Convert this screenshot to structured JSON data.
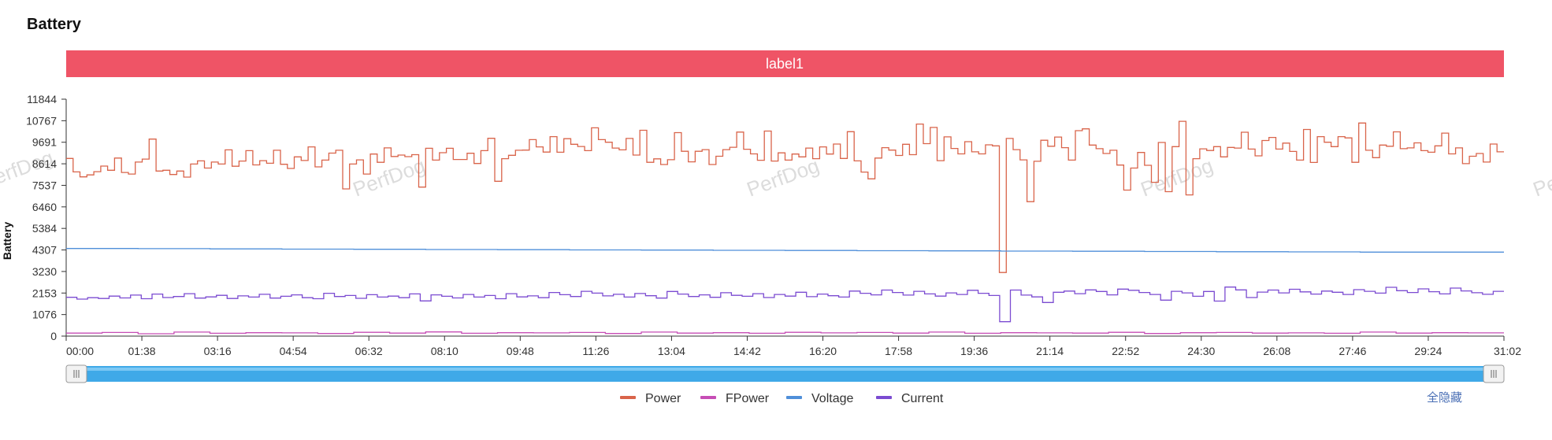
{
  "header": {
    "title": "Battery"
  },
  "chart_data": {
    "type": "line",
    "step": true,
    "ylabel": "Battery",
    "ylim": [
      0,
      11844
    ],
    "y_ticks": [
      0,
      1076,
      2153,
      3230,
      4307,
      5384,
      6460,
      7537,
      8614,
      9691,
      10767,
      11844
    ],
    "x_ticks": [
      "00:00",
      "01:38",
      "03:16",
      "04:54",
      "06:32",
      "08:10",
      "09:48",
      "11:26",
      "13:04",
      "14:42",
      "16:20",
      "17:58",
      "19:36",
      "21:14",
      "22:52",
      "24:30",
      "26:08",
      "27:46",
      "29:24",
      "31:02"
    ],
    "x_range": [
      "00:00",
      "31:02"
    ],
    "label_band": {
      "text": "label1",
      "color": "#ef5466",
      "range": [
        "00:00",
        "31:02"
      ]
    },
    "watermark": "PerfDog",
    "series": [
      {
        "name": "Power",
        "color": "#d9644a",
        "values": [
          8880,
          8210,
          7960,
          8060,
          8220,
          8500,
          8290,
          8900,
          8180,
          8100,
          8700,
          8850,
          9850,
          8250,
          8290,
          8080,
          8250,
          7950,
          8600,
          8760,
          8400,
          8700,
          8600,
          9310,
          8490,
          8750,
          9270,
          8560,
          8770,
          8640,
          9290,
          8590,
          8380,
          8960,
          8780,
          9460,
          8460,
          8800,
          9150,
          9290,
          7360,
          8600,
          8810,
          8100,
          9100,
          8690,
          9410,
          8980,
          9050,
          8970,
          9070,
          7450,
          9390,
          8800,
          9170,
          9390,
          8830,
          8830,
          9140,
          8630,
          9270,
          9890,
          7740,
          8870,
          9040,
          9290,
          9300,
          9820,
          9460,
          9200,
          9970,
          9190,
          9870,
          9590,
          9480,
          9270,
          10410,
          9820,
          9690,
          9400,
          9310,
          9880,
          9050,
          10290,
          8690,
          8860,
          8580,
          8820,
          10170,
          9240,
          8710,
          9240,
          9320,
          8580,
          8990,
          9320,
          9440,
          10200,
          9340,
          9110,
          8790,
          10250,
          8750,
          9160,
          8800,
          9100,
          8960,
          9400,
          8870,
          9460,
          9100,
          9600,
          8880,
          10220,
          8760,
          8200,
          7860,
          8900,
          9420,
          9300,
          9030,
          9590,
          9070,
          10600,
          9620,
          10430,
          8770,
          9960,
          9380,
          9110,
          9720,
          9210,
          9110,
          9560,
          9510,
          3180,
          9880,
          9320,
          8810,
          6720,
          8740,
          9790,
          9490,
          9950,
          9420,
          8800,
          10270,
          10360,
          9550,
          9370,
          9130,
          9290,
          8550,
          7300,
          8400,
          9180,
          8540,
          7690,
          9680,
          7220,
          9470,
          10740,
          7060,
          8870,
          9360,
          9280,
          9470,
          8960,
          9430,
          9400,
          10190,
          9350,
          9010,
          9780,
          9930,
          9350,
          9650,
          9230,
          8800,
          10330,
          8680,
          9970,
          9690,
          9470,
          9970,
          9910,
          8690,
          10650,
          9290,
          8920,
          9550,
          9490,
          10210,
          9370,
          9410,
          9660,
          9270,
          9190,
          9510,
          10150,
          9110,
          9410,
          8620,
          8990,
          9130,
          8700,
          9600,
          9210
        ]
      },
      {
        "name": "FPower",
        "color": "#c64db5",
        "values": [
          150,
          180,
          120,
          200,
          140,
          170,
          160,
          130,
          190,
          150,
          210,
          140,
          170,
          160,
          180,
          130,
          200,
          150,
          170,
          140,
          190,
          160,
          180,
          150,
          200,
          140,
          170,
          160,
          150,
          190,
          130,
          170,
          180,
          150,
          160,
          140,
          200,
          150,
          170,
          160
        ]
      },
      {
        "name": "Voltage",
        "color": "#4f8fd9",
        "values": [
          4380,
          4370,
          4360,
          4350,
          4340,
          4330,
          4320,
          4310,
          4300,
          4290,
          4280,
          4270,
          4260,
          4250,
          4240,
          4230,
          4220,
          4210,
          4200,
          4200
        ]
      },
      {
        "name": "Current",
        "color": "#7b4bd1",
        "values": [
          1940,
          1850,
          1920,
          1880,
          2000,
          1910,
          2050,
          1870,
          2100,
          1930,
          1980,
          2120,
          1900,
          1960,
          2040,
          1880,
          2010,
          1950,
          2090,
          1900,
          1990,
          2060,
          1920,
          1870,
          2140,
          1980,
          2030,
          1890,
          2070,
          1950,
          2000,
          1920,
          2110,
          1760,
          2060,
          1990,
          1910,
          2080,
          1950,
          2030,
          1870,
          2120,
          1960,
          2010,
          1920,
          2180,
          2070,
          1980,
          2240,
          2150,
          2010,
          2090,
          1950,
          2130,
          2020,
          1900,
          2230,
          2100,
          1980,
          2060,
          1940,
          2170,
          2040,
          1990,
          2120,
          1930,
          2080,
          2000,
          2190,
          1970,
          2100,
          2020,
          1950,
          2250,
          2140,
          2060,
          2300,
          2180,
          2050,
          2240,
          2110,
          2000,
          2160,
          2080,
          2290,
          2140,
          2030,
          720,
          2300,
          2050,
          1960,
          1680,
          2190,
          2250,
          2120,
          2310,
          2230,
          2060,
          2350,
          2290,
          2180,
          2080,
          1800,
          2240,
          2160,
          1990,
          2230,
          1750,
          2450,
          2310,
          1930,
          2200,
          2300,
          2160,
          2340,
          2210,
          2100,
          2250,
          2190,
          2080,
          2320,
          2240,
          2150,
          2440,
          2270,
          2180,
          2360,
          2220,
          2110,
          2400,
          2260,
          2170,
          2090,
          2240
        ]
      }
    ],
    "legend": {
      "position": "bottom-center",
      "items": [
        "Power",
        "FPower",
        "Voltage",
        "Current"
      ]
    },
    "hide_all_label": "全隐藏",
    "zoom_slider": {
      "start": 0,
      "end": 1,
      "color": "#3fa9e8"
    }
  }
}
